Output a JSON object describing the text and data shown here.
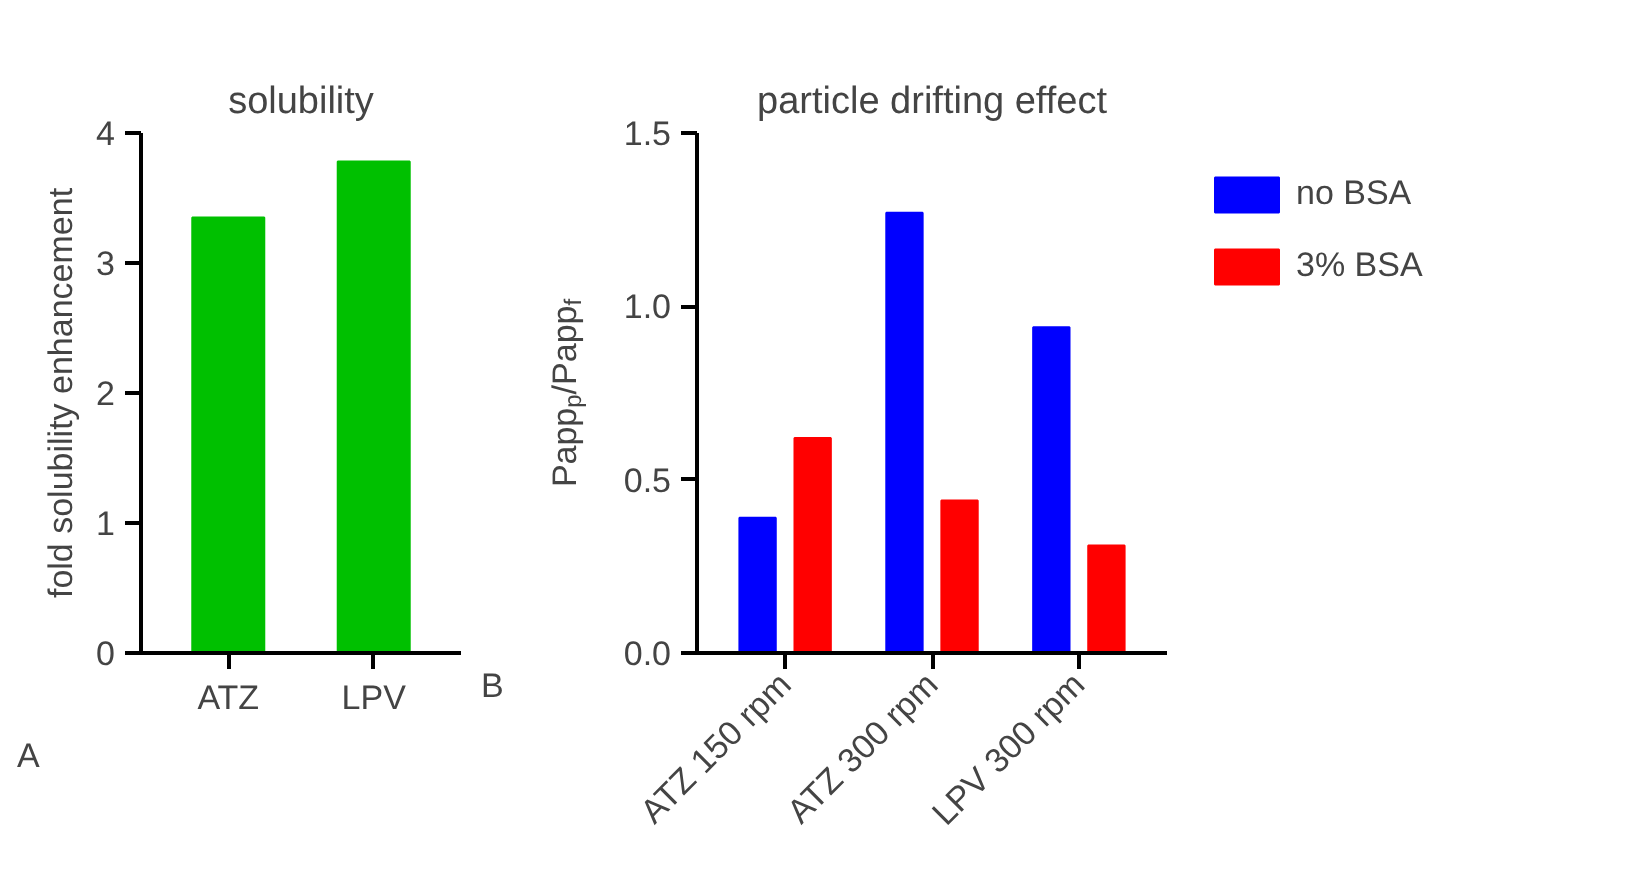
{
  "chart_data": [
    {
      "type": "bar",
      "title": "solubility",
      "ylabel": "fold solubility enhancement",
      "categories": [
        "ATZ",
        "LPV"
      ],
      "series": [
        {
          "color": "#00c000",
          "values": [
            3.35,
            3.78
          ]
        }
      ],
      "ylim": [
        0,
        4
      ],
      "yticks": [
        0,
        1,
        2,
        3,
        4
      ],
      "grid": false,
      "legend": false,
      "annotations": [
        "A"
      ]
    },
    {
      "type": "bar",
      "title": "particle drifting effect",
      "ylabel": "Papp$_{p}$/Papp$_{f}$",
      "categories": [
        "ATZ 150 rpm",
        "ATZ 300 rpm",
        "LPV 300 rpm"
      ],
      "series": [
        {
          "name": "no BSA",
          "color": "#0000ff",
          "values": [
            0.39,
            1.27,
            0.94
          ]
        },
        {
          "name": "3% BSA",
          "color": "#ff0000",
          "values": [
            0.62,
            0.44,
            0.31
          ]
        }
      ],
      "ylim": [
        0,
        1.5
      ],
      "yticks": [
        {
          "value": 0,
          "label": "0.0"
        },
        {
          "value": 0.5,
          "label": "0.5"
        },
        {
          "value": 1,
          "label": "1.0"
        },
        {
          "value": 1.5,
          "label": "1.5"
        }
      ],
      "grid": false,
      "legend": "right",
      "annotations": [
        "B"
      ]
    }
  ]
}
